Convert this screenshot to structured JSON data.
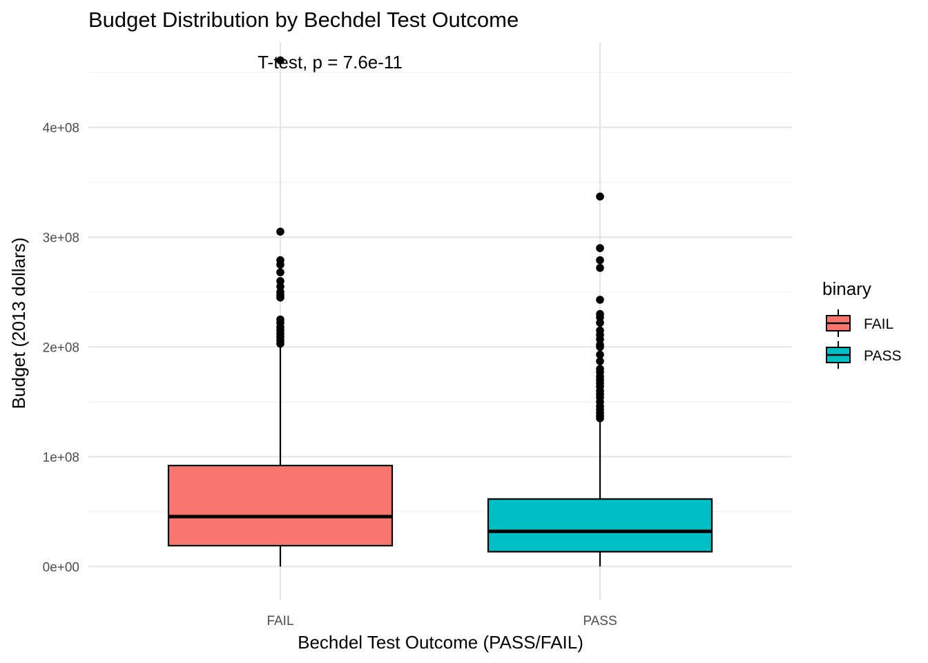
{
  "chart_data": {
    "type": "boxplot",
    "title": "Budget Distribution by Bechdel Test Outcome",
    "xlabel": "Bechdel Test Outcome (PASS/FAIL)",
    "ylabel": "Budget (2013 dollars)",
    "ylim": [
      -30000000,
      477000000
    ],
    "y_ticks": [
      0,
      100000000,
      200000000,
      300000000,
      400000000
    ],
    "y_tick_labels": [
      "0e+00",
      "1e+08",
      "2e+08",
      "3e+08",
      "4e+08"
    ],
    "grid": true,
    "annotation": "T-test, p = 7.6e-11",
    "legend": {
      "title": "binary",
      "position": "right",
      "entries": [
        "FAIL",
        "PASS"
      ]
    },
    "series": [
      {
        "name": "FAIL",
        "color": "#F8766D",
        "whisker_low": 0,
        "q1": 19000000,
        "median": 45500000,
        "q3": 92000000,
        "whisker_high": 200000000,
        "outliers": [
          461000000,
          305000000,
          279000000,
          275000000,
          268000000,
          260000000,
          255000000,
          250000000,
          247000000,
          245000000,
          225000000,
          222000000,
          218000000,
          215000000,
          212000000,
          209000000,
          206000000,
          203000000
        ]
      },
      {
        "name": "PASS",
        "color": "#00BFC4",
        "whisker_low": 0,
        "q1": 13500000,
        "median": 32000000,
        "q3": 61500000,
        "whisker_high": 133000000,
        "outliers": [
          337000000,
          290000000,
          279000000,
          272000000,
          243000000,
          230000000,
          227000000,
          222000000,
          215000000,
          211000000,
          207000000,
          202000000,
          200000000,
          193000000,
          187000000,
          180000000,
          177000000,
          173000000,
          170000000,
          167000000,
          164000000,
          160000000,
          157000000,
          154000000,
          150000000,
          146000000,
          143000000,
          140000000,
          137000000,
          135000000
        ]
      }
    ]
  }
}
